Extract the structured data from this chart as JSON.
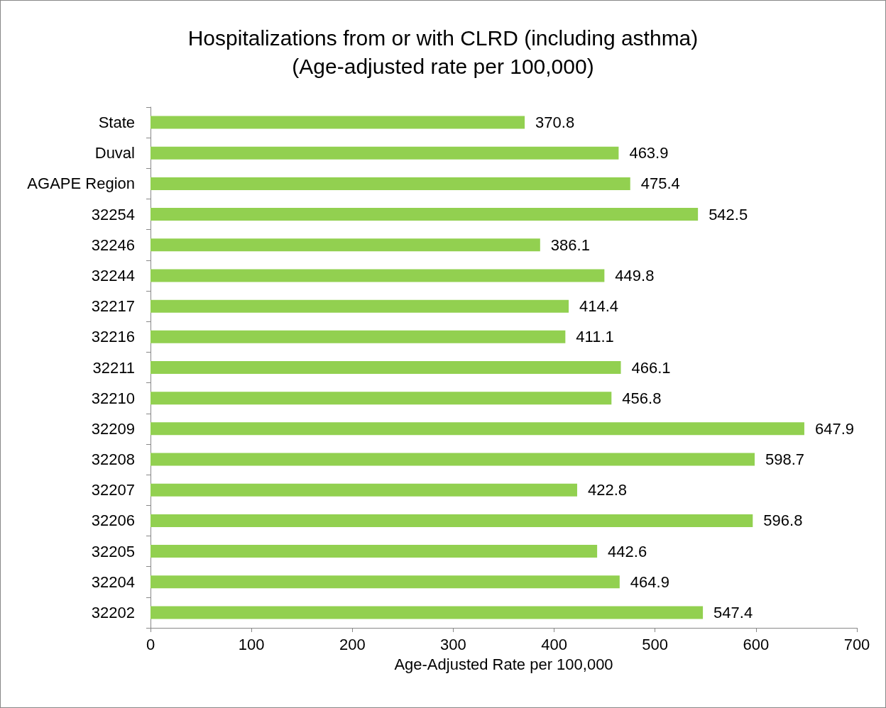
{
  "chart_data": {
    "type": "bar",
    "orientation": "horizontal",
    "title": "Hospitalizations from or with CLRD (including asthma)",
    "subtitle": "(Age-adjusted rate per 100,000)",
    "xlabel": "Age-Adjusted Rate per 100,000",
    "categories": [
      "State",
      "Duval",
      "AGAPE Region",
      "32254",
      "32246",
      "32244",
      "32217",
      "32216",
      "32211",
      "32210",
      "32209",
      "32208",
      "32207",
      "32206",
      "32205",
      "32204",
      "32202"
    ],
    "values": [
      370.8,
      463.9,
      475.4,
      542.5,
      386.1,
      449.8,
      414.4,
      411.1,
      466.1,
      456.8,
      647.9,
      598.7,
      422.8,
      596.8,
      442.6,
      464.9,
      547.4
    ],
    "color": "#92d050",
    "xlim": [
      0,
      700
    ],
    "xticks": [
      0,
      100,
      200,
      300,
      400,
      500,
      600,
      700
    ],
    "data_labels": true
  }
}
